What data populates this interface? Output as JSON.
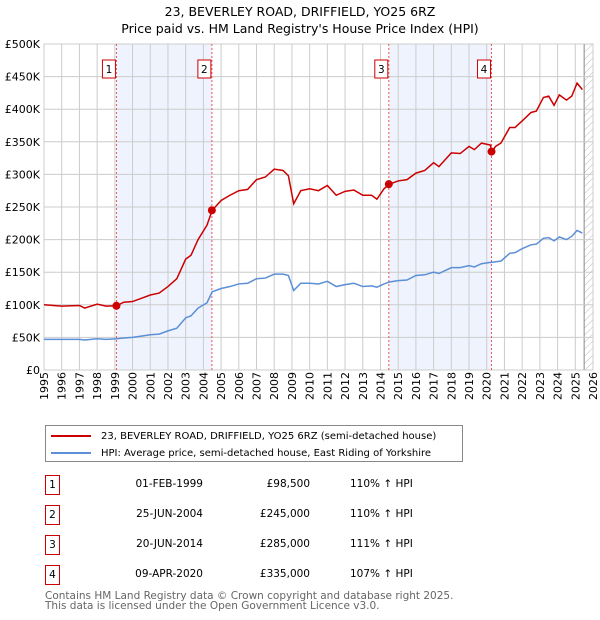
{
  "title": "23, BEVERLEY ROAD, DRIFFIELD, YO25 6RZ",
  "subtitle": "Price paid vs. HM Land Registry's House Price Index (HPI)",
  "colors": {
    "property": "#cc0000",
    "hpi": "#5b8fd6",
    "shade": "#eef3fd"
  },
  "chart_data": {
    "type": "line",
    "title": "23, BEVERLEY ROAD, DRIFFIELD, YO25 6RZ",
    "ylim": [
      0,
      500000
    ],
    "xlim": [
      1995,
      2026
    ],
    "yticks": [
      {
        "v": 0,
        "l": "£0"
      },
      {
        "v": 50000,
        "l": "£50K"
      },
      {
        "v": 100000,
        "l": "£100K"
      },
      {
        "v": 150000,
        "l": "£150K"
      },
      {
        "v": 200000,
        "l": "£200K"
      },
      {
        "v": 250000,
        "l": "£250K"
      },
      {
        "v": 300000,
        "l": "£300K"
      },
      {
        "v": 350000,
        "l": "£350K"
      },
      {
        "v": 400000,
        "l": "£400K"
      },
      {
        "v": 450000,
        "l": "£450K"
      },
      {
        "v": 500000,
        "l": "£500K"
      }
    ],
    "xticks": [
      "1995",
      "1996",
      "1997",
      "1998",
      "1999",
      "2000",
      "2001",
      "2002",
      "2003",
      "2004",
      "2005",
      "2006",
      "2007",
      "2008",
      "2009",
      "2010",
      "2011",
      "2012",
      "2013",
      "2014",
      "2015",
      "2016",
      "2017",
      "2018",
      "2019",
      "2020",
      "2021",
      "2022",
      "2023",
      "2024",
      "2025",
      "2026"
    ],
    "x": [
      1995,
      1996,
      1997,
      1997.3,
      1998,
      1998.5,
      1999.1,
      1999.5,
      2000,
      2000.5,
      2001,
      2001.5,
      2002,
      2002.5,
      2003,
      2003.3,
      2003.7,
      2004.2,
      2004.5,
      2005,
      2005.5,
      2006,
      2006.5,
      2007,
      2007.5,
      2008,
      2008.5,
      2008.8,
      2009.1,
      2009.5,
      2010,
      2010.5,
      2011,
      2011.5,
      2012,
      2012.5,
      2013,
      2013.5,
      2013.8,
      2014.2,
      2014.5,
      2015,
      2015.5,
      2016,
      2016.5,
      2017,
      2017.3,
      2018,
      2018.5,
      2019,
      2019.3,
      2019.7,
      2020.2,
      2020.3,
      2020.5,
      2020.8,
      2021.3,
      2021.6,
      2022,
      2022.5,
      2022.8,
      2023.2,
      2023.5,
      2023.8,
      2024.1,
      2024.5,
      2024.8,
      2025.1,
      2025.4
    ],
    "series": [
      {
        "name": "23, BEVERLEY ROAD, DRIFFIELD, YO25 6RZ (semi-detached house)",
        "values": [
          100,
          98,
          99,
          95,
          101,
          98,
          98.5,
          104,
          105,
          110,
          115,
          118,
          128,
          140,
          170,
          176,
          200,
          222,
          245,
          260,
          268,
          275,
          277,
          292,
          296,
          308,
          306,
          298,
          255,
          275,
          278,
          275,
          283,
          268,
          274,
          276,
          268,
          268,
          262,
          278,
          285,
          290,
          292,
          302,
          306,
          318,
          312,
          333,
          332,
          343,
          338,
          348,
          345,
          335,
          343,
          348,
          372,
          372,
          382,
          395,
          397,
          418,
          420,
          406,
          422,
          414,
          420,
          440,
          430
        ],
        "unit": "£K"
      },
      {
        "name": "HPI: Average price, semi-detached house, East Riding of Yorkshire",
        "values": [
          47,
          47,
          47,
          46,
          48,
          47,
          48,
          49,
          50,
          52,
          54,
          55,
          60,
          64,
          80,
          83,
          95,
          103,
          120,
          125,
          128,
          132,
          133,
          140,
          141,
          147,
          147,
          145,
          122,
          133,
          133,
          132,
          136,
          128,
          131,
          133,
          128,
          129,
          127,
          132,
          135,
          137,
          138,
          145,
          146,
          150,
          148,
          157,
          157,
          160,
          158,
          163,
          165,
          165,
          166,
          167,
          179,
          180,
          186,
          192,
          193,
          202,
          203,
          198,
          204,
          200,
          205,
          214,
          210
        ],
        "unit": "£K"
      }
    ],
    "sales": [
      {
        "n": "1",
        "x": 1999.09,
        "value": 98500,
        "date": "01-FEB-1999",
        "price": "£98,500",
        "hpi": "110% ↑ HPI"
      },
      {
        "n": "2",
        "x": 2004.48,
        "value": 245000,
        "date": "25-JUN-2004",
        "price": "£245,000",
        "hpi": "110% ↑ HPI"
      },
      {
        "n": "3",
        "x": 2014.47,
        "value": 285000,
        "date": "20-JUN-2014",
        "price": "£285,000",
        "hpi": "111% ↑ HPI"
      },
      {
        "n": "4",
        "x": 2020.27,
        "value": 335000,
        "date": "09-APR-2020",
        "price": "£335,000",
        "hpi": "107% ↑ HPI"
      }
    ],
    "forecast_start": 2025.5,
    "legend_placement": "bottom"
  },
  "legend": {
    "property": "23, BEVERLEY ROAD, DRIFFIELD, YO25 6RZ (semi-detached house)",
    "hpi": "HPI: Average price, semi-detached house, East Riding of Yorkshire"
  },
  "footer": {
    "line1": "Contains HM Land Registry data © Crown copyright and database right 2025.",
    "line2": "This data is licensed under the Open Government Licence v3.0."
  }
}
